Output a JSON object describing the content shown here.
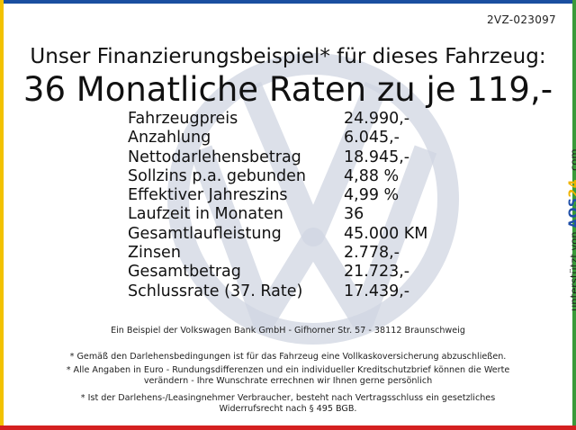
{
  "reference": "2VZ-023097",
  "headline": "Unser Finanzierungsbeispiel* für dieses Fahrzeug:",
  "subheadline": "36 Monatliche Raten zu je 119,-",
  "finance_rows": [
    {
      "label": "Fahrzeugpreis",
      "value": "24.990,-"
    },
    {
      "label": "Anzahlung",
      "value": "6.045,-"
    },
    {
      "label": "Nettodarlehensbetrag",
      "value": "18.945,-"
    },
    {
      "label": "Sollzins p.a. gebunden",
      "value": "4,88 %"
    },
    {
      "label": "Effektiver Jahreszins",
      "value": "4,99 %"
    },
    {
      "label": "Laufzeit in Monaten",
      "value": "36"
    },
    {
      "label": "Gesamtlaufleistung",
      "value": "45.000 KM"
    },
    {
      "label": "Zinsen",
      "value": "2.778,-"
    },
    {
      "label": "Gesamtbetrag",
      "value": "21.723,-"
    },
    {
      "label": "Schlussrate (37. Rate)",
      "value": "17.439,-"
    }
  ],
  "sidebar": {
    "text": "unterstützt von",
    "brand_part1": "AOS",
    "brand_part2": "24",
    "brand_part3": ".com"
  },
  "footer": {
    "bank_line": "Ein Beispiel der Volkswagen Bank GmbH - Gifhorner Str. 57 - 38112 Braunschweig",
    "note1": "* Gemäß den Darlehensbedingungen ist für das Fahrzeug eine Vollkaskoversicherung abzuschließen.",
    "note2a": "* Alle Angaben in Euro - Rundungsdifferenzen und ein individueller Kreditschutzbrief können die Werte",
    "note2b": "verändern - Ihre Wunschrate errechnen wir Ihnen gerne persönlich",
    "note3a": "* Ist der Darlehens-/Leasingnehmer Verbraucher, besteht nach Vertragsschluss ein gesetzliches",
    "note3b": "Widerrufsrecht nach § 495 BGB."
  },
  "colors": {
    "frame_top": "#1a4fa0",
    "frame_left": "#f2c200",
    "frame_right": "#3a9a3a",
    "frame_bottom": "#d42020",
    "watermark": "#d0d6e2"
  },
  "icons": {
    "watermark": "vw-logo-watermark"
  }
}
